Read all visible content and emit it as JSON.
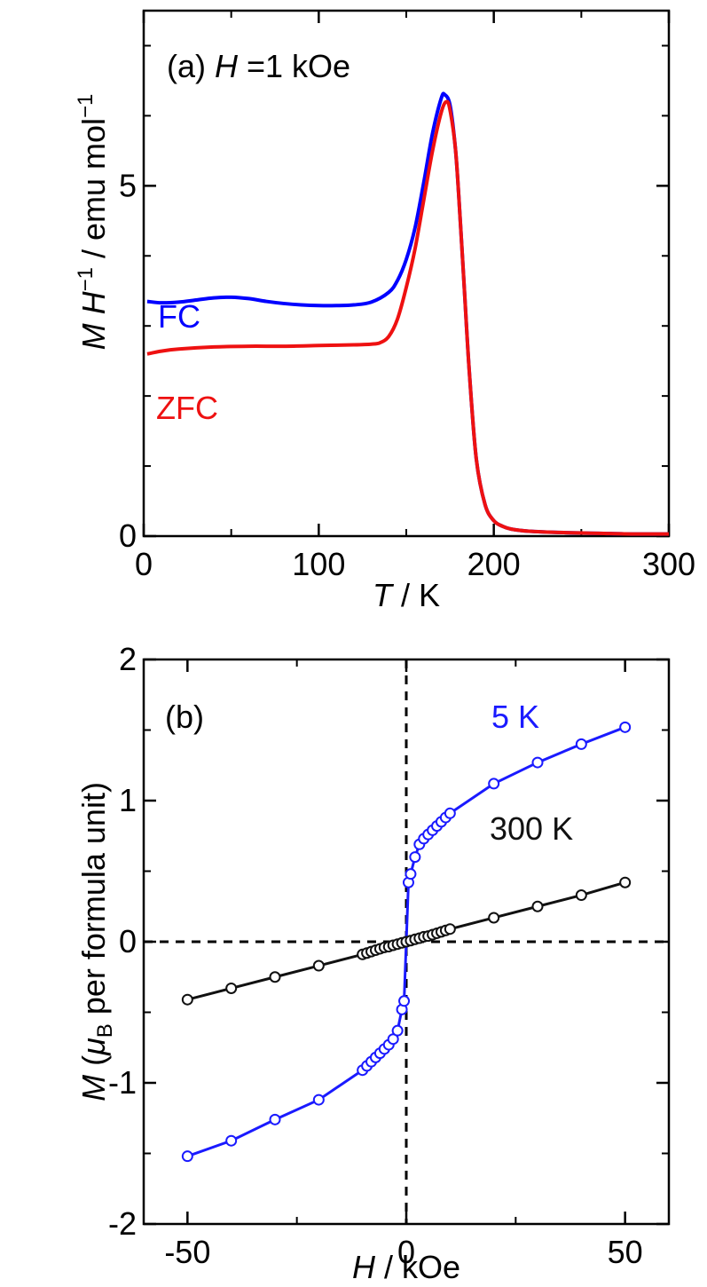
{
  "chart_data": [
    {
      "panel": "(a)",
      "type": "line",
      "annotation": {
        "prefix": "(a) ",
        "italic": "H",
        "suffix": " =1 kOe"
      },
      "xlabel": {
        "italic": "T",
        "rest": " / K"
      },
      "ylabel": {
        "italic1": "M H",
        "sup1": "−1",
        "rest": " / emu mol",
        "sup2": "−1"
      },
      "xlim": [
        0,
        300
      ],
      "ylim": [
        0,
        7.5
      ],
      "xticks": [
        "0",
        "100",
        "200",
        "300"
      ],
      "yticks": [
        "0",
        "5"
      ],
      "grid": false,
      "series": [
        {
          "name": "FC",
          "color": "#0000ff",
          "x": [
            2,
            10,
            20,
            30,
            40,
            50,
            60,
            70,
            80,
            90,
            100,
            110,
            120,
            130,
            140,
            145,
            150,
            155,
            160,
            165,
            170,
            172,
            175,
            178,
            180,
            183,
            186,
            190,
            195,
            200,
            205,
            210,
            220,
            240,
            260,
            280,
            300
          ],
          "y": [
            3.35,
            3.33,
            3.34,
            3.37,
            3.4,
            3.41,
            3.39,
            3.35,
            3.32,
            3.3,
            3.29,
            3.29,
            3.3,
            3.34,
            3.48,
            3.65,
            3.95,
            4.4,
            5.05,
            5.75,
            6.25,
            6.3,
            6.15,
            5.55,
            4.85,
            3.6,
            2.35,
            1.1,
            0.45,
            0.22,
            0.14,
            0.1,
            0.07,
            0.05,
            0.04,
            0.03,
            0.03
          ]
        },
        {
          "name": "ZFC",
          "color": "#ee1111",
          "x": [
            2,
            10,
            20,
            40,
            60,
            80,
            100,
            120,
            130,
            135,
            140,
            145,
            150,
            155,
            160,
            165,
            170,
            173,
            175,
            178,
            180,
            183,
            186,
            190,
            195,
            200,
            205,
            210,
            220,
            240,
            260,
            280,
            300
          ],
          "y": [
            2.6,
            2.64,
            2.67,
            2.7,
            2.71,
            2.71,
            2.72,
            2.73,
            2.74,
            2.76,
            2.85,
            3.1,
            3.55,
            4.1,
            4.8,
            5.5,
            6.05,
            6.2,
            6.08,
            5.55,
            4.85,
            3.6,
            2.35,
            1.1,
            0.45,
            0.22,
            0.14,
            0.1,
            0.07,
            0.05,
            0.04,
            0.03,
            0.03
          ]
        }
      ]
    },
    {
      "panel": "(b)",
      "type": "scatter",
      "annotation": "(b)",
      "xlabel": {
        "italic": "H",
        "rest": " / kOe"
      },
      "ylabel": {
        "italic": "M",
        "open": " (",
        "mu": "μ",
        "sub": "B",
        "rest": " per formula unit)"
      },
      "xlim": [
        -60,
        60
      ],
      "ylim": [
        -2,
        2
      ],
      "xticks": [
        "-50",
        "0",
        "50"
      ],
      "yticks": [
        "-2",
        "-1",
        "0",
        "1",
        "2"
      ],
      "grid": false,
      "reference_lines": "dashed at x=0 and y=0",
      "series": [
        {
          "name": "5 K",
          "color": "#1a1aff",
          "x": [
            -50,
            -40,
            -30,
            -20,
            -10,
            -9,
            -8,
            -7,
            -6,
            -5,
            -4,
            -3,
            -2,
            -1,
            -0.5,
            0,
            0.5,
            1,
            2,
            3,
            4,
            5,
            6,
            7,
            8,
            9,
            10,
            20,
            30,
            40,
            50
          ],
          "y": [
            -1.52,
            -1.41,
            -1.26,
            -1.12,
            -0.91,
            -0.88,
            -0.85,
            -0.82,
            -0.79,
            -0.76,
            -0.73,
            -0.69,
            -0.63,
            -0.48,
            -0.42,
            0.0,
            0.42,
            0.48,
            0.6,
            0.69,
            0.73,
            0.76,
            0.79,
            0.82,
            0.85,
            0.88,
            0.91,
            1.12,
            1.27,
            1.4,
            1.52
          ]
        },
        {
          "name": "300 K",
          "color": "#111111",
          "x": [
            -50,
            -40,
            -30,
            -20,
            -10,
            -9,
            -8,
            -7,
            -6,
            -5,
            -4,
            -3,
            -2,
            -1,
            0,
            1,
            2,
            3,
            4,
            5,
            6,
            7,
            8,
            9,
            10,
            20,
            30,
            40,
            50
          ],
          "y": [
            -0.41,
            -0.33,
            -0.25,
            -0.17,
            -0.09,
            -0.08,
            -0.07,
            -0.06,
            -0.05,
            -0.04,
            -0.035,
            -0.025,
            -0.017,
            -0.008,
            0.0,
            0.008,
            0.017,
            0.025,
            0.035,
            0.04,
            0.05,
            0.06,
            0.07,
            0.08,
            0.09,
            0.17,
            0.25,
            0.33,
            0.42
          ]
        }
      ]
    }
  ]
}
